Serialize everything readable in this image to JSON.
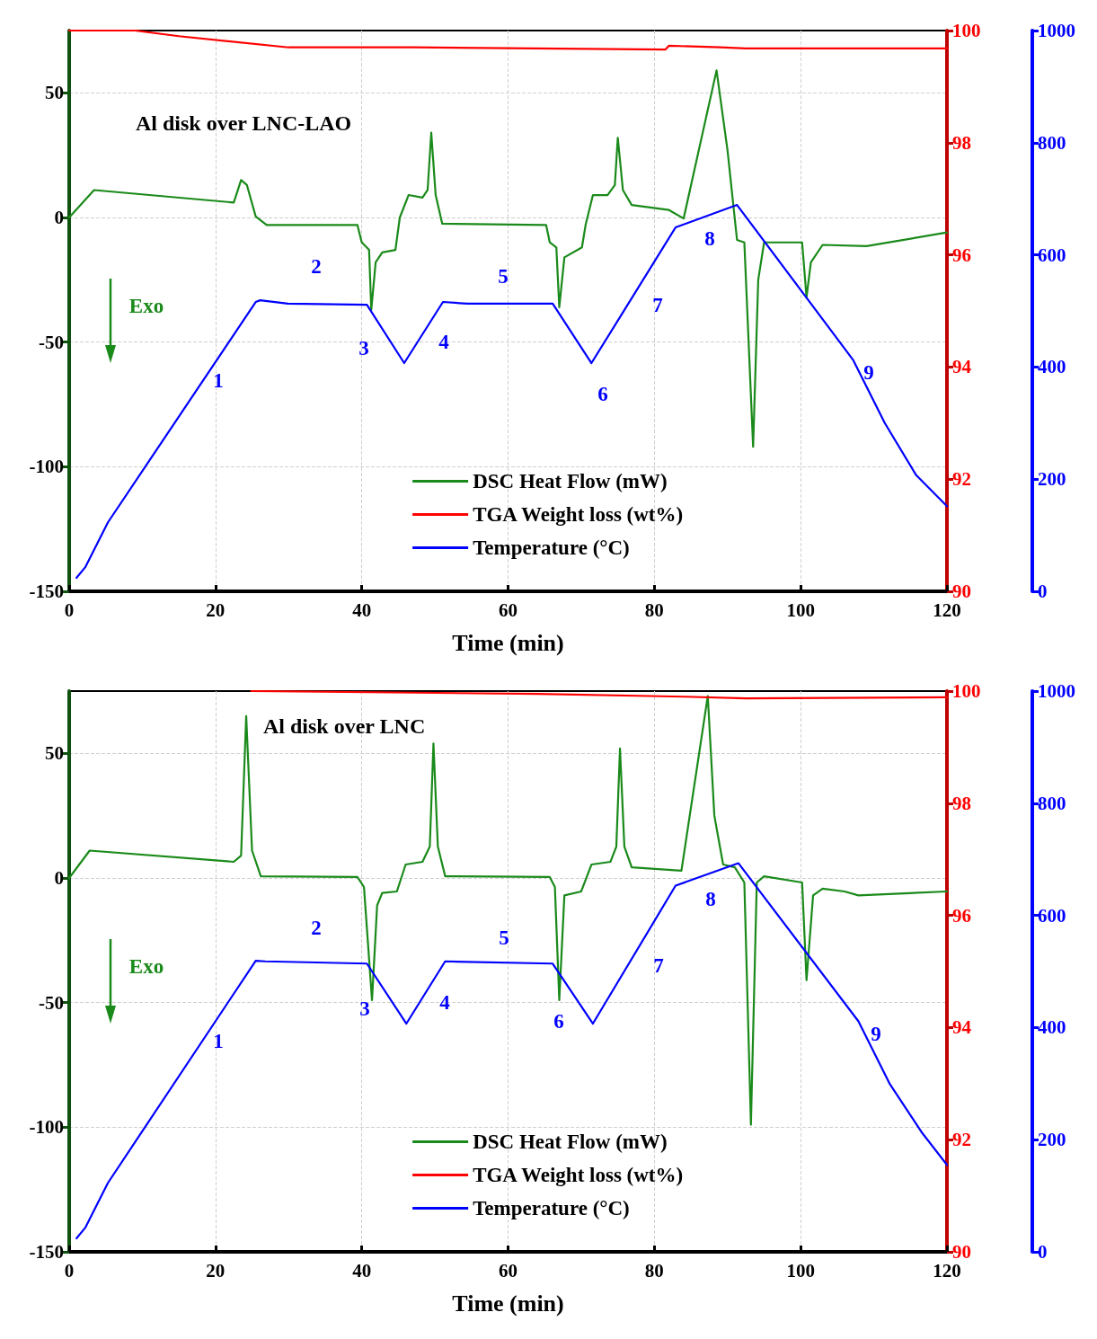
{
  "chart_data": [
    {
      "type": "line",
      "title": "Al disk over LNC-LAO",
      "xlabel": "Time (min)",
      "xlim": [
        0,
        120
      ],
      "xticks": [
        0,
        20,
        40,
        60,
        80,
        100,
        120
      ],
      "ylim": [
        -150,
        75
      ],
      "yticks": [
        -150,
        -100,
        -50,
        0,
        50
      ],
      "y2lim": [
        90,
        100
      ],
      "y2ticks": [
        90,
        92,
        94,
        96,
        98,
        100
      ],
      "y3lim": [
        0,
        1000
      ],
      "y3ticks": [
        0,
        200,
        400,
        600,
        800,
        1000
      ],
      "grid": true,
      "legend": "bottom",
      "series": [
        {
          "name": "DSC Heat Flow (mW)",
          "color": "#1a8a1a",
          "axis": "y",
          "x": [
            0,
            3.4,
            22.5,
            23.5,
            24.3,
            25.5,
            27,
            39.4,
            40,
            41,
            41.3,
            41.9,
            42.8,
            44.6,
            45.2,
            46.4,
            48.3,
            49,
            49.5,
            50.1,
            51,
            65.2,
            65.7,
            66.6,
            67,
            67.7,
            70.1,
            70.6,
            71.6,
            73.6,
            74.6,
            75,
            75.7,
            76.9,
            82,
            84,
            88.5,
            90,
            91.3,
            92.3,
            93.5,
            94.2,
            95,
            96.2,
            100.2,
            100.8,
            101.4,
            103,
            109,
            120
          ],
          "values": [
            0,
            11,
            6,
            15,
            13,
            0.4,
            -3,
            -3,
            -10,
            -13,
            -37,
            -18,
            -14,
            -13,
            0,
            9,
            8,
            11,
            34,
            9,
            -2.5,
            -3,
            -10,
            -12,
            -36,
            -16,
            -12,
            -3,
            9,
            9,
            13,
            32,
            11,
            5,
            3,
            -0.4,
            59,
            27,
            -9,
            -10,
            -92,
            -25,
            -10,
            -10,
            -10,
            -32,
            -18,
            -11,
            -11.5,
            -6
          ]
        },
        {
          "name": "TGA Weight loss (wt%)",
          "color": "#ff0000",
          "axis": "y2",
          "x": [
            0,
            9,
            15,
            30,
            47,
            81.5,
            82,
            89,
            92.5,
            120
          ],
          "values": [
            100,
            100,
            99.9,
            99.7,
            99.7,
            99.66,
            99.73,
            99.7,
            99.68,
            99.68
          ]
        },
        {
          "name": "Temperature (°C)",
          "color": "#0000ff",
          "axis": "y3",
          "x": [
            1,
            2.2,
            5.3,
            25.5,
            26.1,
            29.9,
            40.7,
            45.8,
            51.1,
            54.4,
            66.1,
            71.4,
            75.3,
            82.9,
            91.3,
            107.2,
            111.5,
            115.8,
            120
          ],
          "values": [
            24,
            43,
            123,
            516,
            519,
            513,
            511,
            407,
            516,
            513,
            513,
            407,
            489,
            649,
            689,
            412,
            300,
            207,
            152
          ]
        }
      ],
      "annotations": [
        "Exo",
        "1",
        "2",
        "3",
        "4",
        "5",
        "6",
        "7",
        "8",
        "9"
      ]
    },
    {
      "type": "line",
      "title": "Al disk over LNC",
      "xlabel": "Time (min)",
      "xlim": [
        0,
        120
      ],
      "xticks": [
        0,
        20,
        40,
        60,
        80,
        100,
        120
      ],
      "ylim": [
        -150,
        75
      ],
      "yticks": [
        -150,
        -100,
        -50,
        0,
        50
      ],
      "y2lim": [
        90,
        100
      ],
      "y2ticks": [
        90,
        92,
        94,
        96,
        98,
        100
      ],
      "y3lim": [
        0,
        1000
      ],
      "y3ticks": [
        0,
        200,
        400,
        600,
        800,
        1000
      ],
      "grid": true,
      "legend": "bottom",
      "series": [
        {
          "name": "DSC Heat Flow (mW)",
          "color": "#1a8a1a",
          "axis": "y",
          "x": [
            0,
            2.8,
            22.5,
            23.5,
            24.2,
            25,
            26.2,
            39.4,
            40.3,
            41.4,
            42.1,
            42.8,
            44.8,
            46,
            48.3,
            49.3,
            49.8,
            50.4,
            51.4,
            65.7,
            66.4,
            67,
            67.7,
            70,
            71.4,
            74,
            74.8,
            75.3,
            75.9,
            76.9,
            83.7,
            87.3,
            88.2,
            89.4,
            91,
            92.3,
            93.2,
            94,
            95,
            100.2,
            100.8,
            101.7,
            103,
            106,
            107.9,
            120
          ],
          "values": [
            0,
            11,
            6.5,
            9,
            65,
            11,
            0.7,
            0.4,
            -3.6,
            -49,
            -11,
            -6,
            -5.4,
            5.4,
            6.5,
            12.6,
            54,
            12.6,
            0.7,
            0.4,
            -3.6,
            -49,
            -7,
            -5.4,
            5.4,
            6.5,
            12.6,
            52,
            12.6,
            4.3,
            2.9,
            73,
            25,
            5.4,
            4.3,
            -1.8,
            -99,
            -1.8,
            0.7,
            -1.8,
            -41,
            -7,
            -4.3,
            -5.4,
            -7,
            -5.4
          ]
        },
        {
          "name": "TGA Weight loss (wt%)",
          "color": "#ff0000",
          "axis": "y2",
          "x": [
            24.9,
            64,
            84,
            92.5,
            120
          ],
          "values": [
            100,
            99.95,
            99.9,
            99.87,
            99.89
          ]
        },
        {
          "name": "Temperature (°C)",
          "color": "#0000ff",
          "axis": "y3",
          "x": [
            1,
            2.2,
            5.3,
            25.5,
            26.8,
            40.7,
            46.1,
            51.4,
            66.1,
            71.6,
            82.9,
            91.5,
            107.9,
            112.2,
            116.5,
            120
          ],
          "values": [
            24,
            43,
            123,
            519,
            518,
            514,
            407,
            518,
            514,
            407,
            653,
            693,
            411,
            299,
            214,
            155
          ]
        }
      ],
      "annotations": [
        "Exo",
        "1",
        "2",
        "3",
        "4",
        "5",
        "6",
        "7",
        "8",
        "9"
      ]
    }
  ]
}
